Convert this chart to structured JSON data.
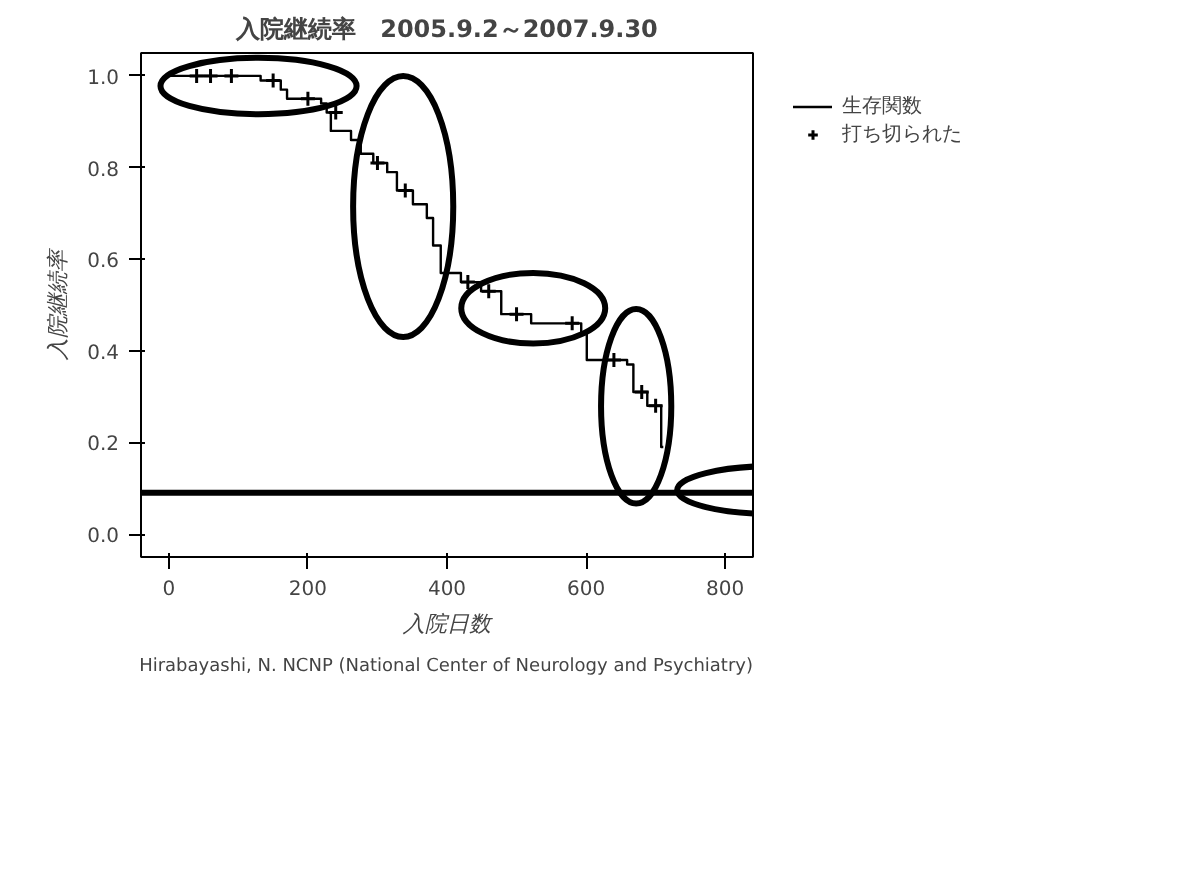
{
  "chart_data": {
    "type": "step",
    "title": "入院継続率　2005.9.2～2007.9.30",
    "xlabel": "入院日数",
    "ylabel": "入院継続率",
    "xlim": [
      -40,
      840
    ],
    "ylim": [
      -0.05,
      1.05
    ],
    "xticks": [
      0,
      200,
      400,
      600,
      800
    ],
    "yticks": [
      {
        "value": 0,
        "label": "0.0"
      },
      {
        "value": 0.2,
        "label": "0.2"
      },
      {
        "value": 0.4,
        "label": "0.4"
      },
      {
        "value": 0.6,
        "label": "0.6"
      },
      {
        "value": 0.8,
        "label": "0.8"
      },
      {
        "value": 1,
        "label": "1.0"
      }
    ],
    "series": [
      {
        "name": "生存関数",
        "color": "#000000",
        "x": [
          0,
          132,
          161,
          170,
          219,
          227,
          233,
          262,
          276,
          294,
          314,
          328,
          351,
          371,
          380,
          391,
          420,
          449,
          478,
          521,
          593,
          601,
          659,
          668,
          688,
          708,
          711
        ],
        "values": [
          1.0,
          0.99,
          0.97,
          0.95,
          0.94,
          0.92,
          0.88,
          0.86,
          0.83,
          0.81,
          0.79,
          0.75,
          0.72,
          0.69,
          0.63,
          0.57,
          0.55,
          0.53,
          0.48,
          0.46,
          0.44,
          0.38,
          0.37,
          0.31,
          0.28,
          0.19,
          0.19
        ]
      },
      {
        "name": "打ち切られた",
        "type": "scatter",
        "marker": "cross",
        "color": "#000000",
        "x": [
          40,
          60,
          90,
          150,
          200,
          240,
          300,
          340,
          430,
          460,
          500,
          580,
          640,
          680,
          700
        ],
        "values": [
          1.0,
          1.0,
          1.0,
          0.99,
          0.95,
          0.92,
          0.81,
          0.75,
          0.55,
          0.53,
          0.48,
          0.46,
          0.38,
          0.31,
          0.28
        ]
      }
    ],
    "ref_lines": [
      {
        "axis": "y",
        "value": 0.09,
        "color": "#000000"
      }
    ],
    "grid": false,
    "legend": "top right",
    "annotations": [
      "Hirabayashi, N. NCNP (National Center of Neurology and Psychiatry)"
    ]
  }
}
